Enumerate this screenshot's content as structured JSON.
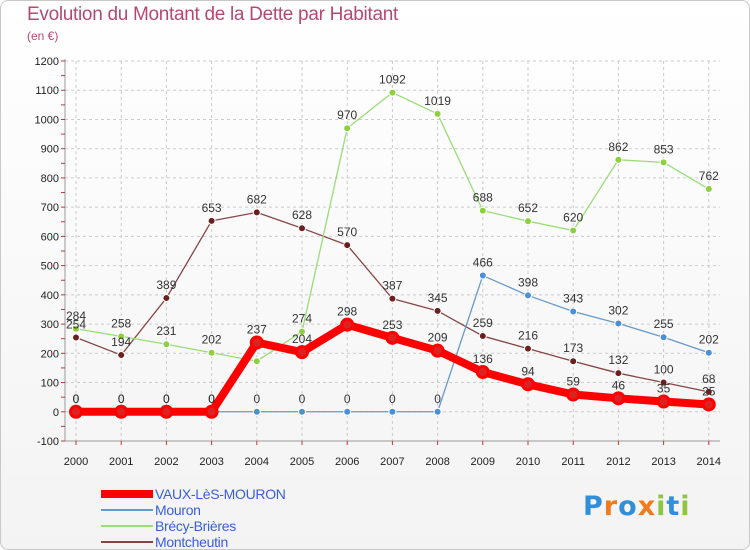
{
  "title": "Evolution du Montant de la Dette par Habitant",
  "subtitle": "(en €)",
  "logo": {
    "text": "Proxiti",
    "letters": [
      "P",
      "r",
      "o",
      "x",
      "i",
      "t",
      "i"
    ],
    "letter_colors": [
      "#2f8fd8",
      "#f07a1e",
      "#2f8fd8",
      "#f07a1e",
      "#8dc63f",
      "#2f8fd8",
      "#8dc63f"
    ]
  },
  "chart_data": {
    "type": "line",
    "title": "Evolution du Montant de la Dette par Habitant",
    "subtitle": "(en €)",
    "xlabel": "",
    "ylabel": "",
    "ylim": [
      -100,
      1200
    ],
    "yticks": [
      -100,
      0,
      100,
      200,
      300,
      400,
      500,
      600,
      700,
      800,
      900,
      1000,
      1100,
      1200
    ],
    "grid": true,
    "legend_position": "bottom-left",
    "categories": [
      "2000",
      "2001",
      "2002",
      "2003",
      "2004",
      "2005",
      "2006",
      "2007",
      "2008",
      "2009",
      "2010",
      "2011",
      "2012",
      "2013",
      "2014"
    ],
    "series": [
      {
        "name": "VAUX-LèS-MOURON",
        "color": "#ff0000",
        "marker": "#dd2222",
        "bold": true,
        "values": [
          0,
          0,
          0,
          0,
          237,
          204,
          298,
          253,
          209,
          136,
          94,
          59,
          46,
          35,
          25
        ],
        "labels": [
          "0",
          "0",
          "0",
          "0",
          "237",
          "204",
          "298",
          "253",
          "209",
          "136",
          "94",
          "59",
          "46",
          "35",
          "25"
        ]
      },
      {
        "name": "Mouron",
        "color": "#6699cc",
        "marker": "#4b8fd8",
        "values": [
          0,
          0,
          0,
          0,
          0,
          0,
          0,
          0,
          0,
          466,
          398,
          343,
          302,
          255,
          202
        ],
        "labels": [
          "0",
          "0",
          "0",
          "0",
          "0",
          "0",
          "0",
          "0",
          "0",
          "466",
          "398",
          "343",
          "302",
          "255",
          "202"
        ]
      },
      {
        "name": "Brécy-Brières",
        "color": "#99dd77",
        "marker": "#8cd03c",
        "values": [
          284,
          258,
          231,
          202,
          173,
          274,
          970,
          1092,
          1019,
          688,
          652,
          620,
          862,
          853,
          762
        ],
        "labels": [
          "284",
          "258",
          "231",
          "202",
          "",
          "274",
          "970",
          "1092",
          "1019",
          "688",
          "652",
          "620",
          "862",
          "853",
          "762"
        ]
      },
      {
        "name": "Montcheutin",
        "color": "#884444",
        "marker": "#6b1f1f",
        "values": [
          254,
          194,
          389,
          653,
          682,
          628,
          570,
          387,
          345,
          259,
          216,
          173,
          132,
          100,
          68
        ],
        "labels": [
          "254",
          "194",
          "389",
          "653",
          "682",
          "628",
          "570",
          "387",
          "345",
          "259",
          "216",
          "173",
          "132",
          "100",
          "68"
        ]
      }
    ]
  }
}
